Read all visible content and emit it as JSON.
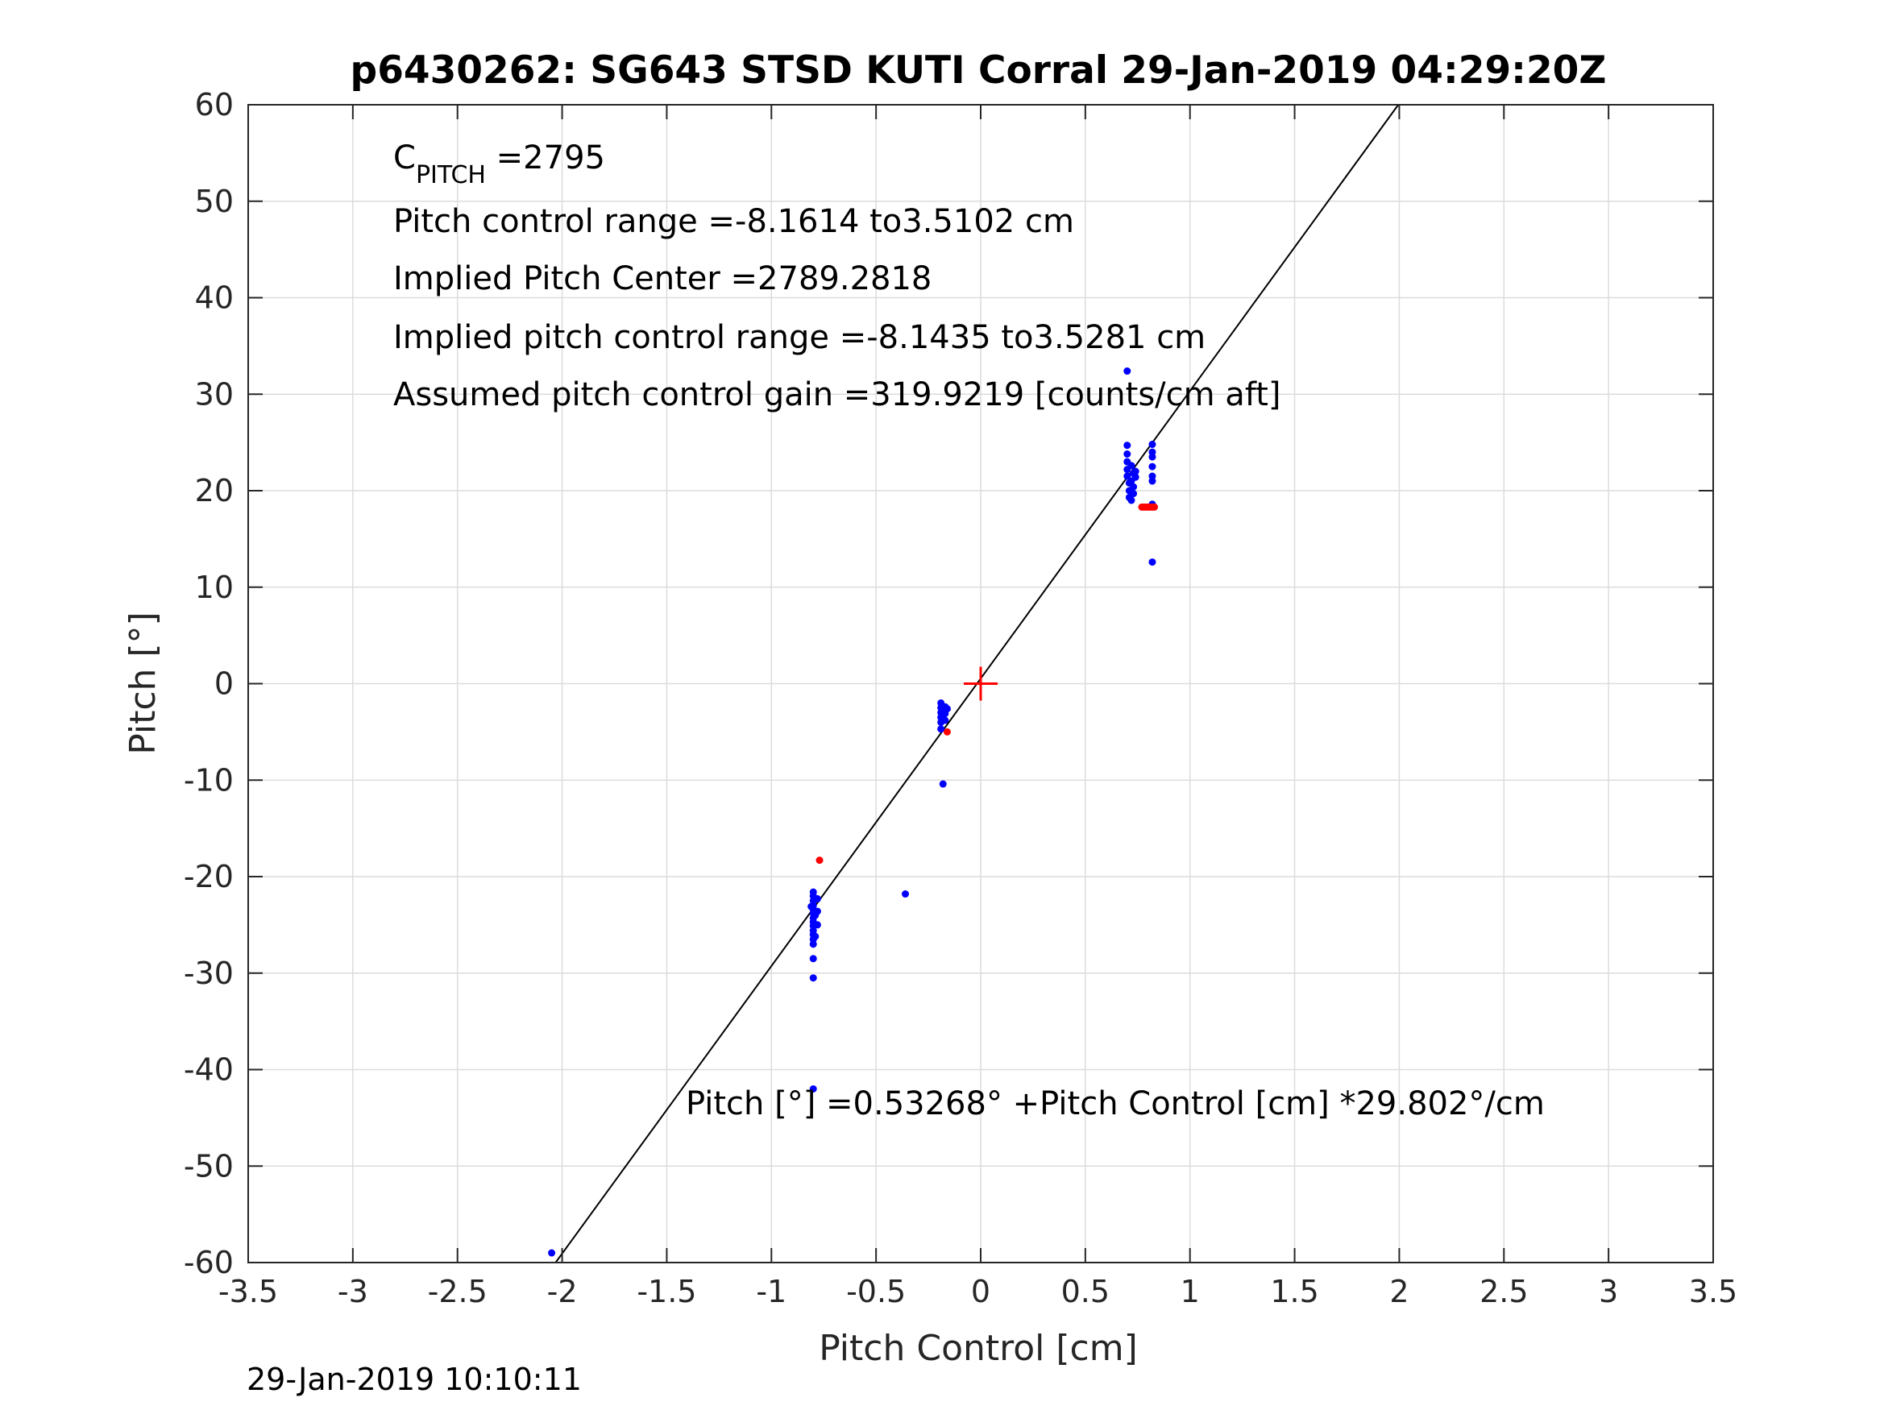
{
  "chart_data": {
    "type": "scatter",
    "title": "p6430262: SG643 STSD KUTI Corral 29-Jan-2019 04:29:20Z",
    "xlabel": "Pitch Control [cm]",
    "ylabel": "Pitch [°]",
    "xlim": [
      -3.5,
      3.5
    ],
    "ylim": [
      -60,
      60
    ],
    "grid": true,
    "xticks": [
      -3.5,
      -3,
      -2.5,
      -2,
      -1.5,
      -1,
      -0.5,
      0,
      0.5,
      1,
      1.5,
      2,
      2.5,
      3,
      3.5
    ],
    "xtick_labels": [
      "-3.5",
      "-3",
      "-2.5",
      "-2",
      "-1.5",
      "-1",
      "-0.5",
      "0",
      "0.5",
      "1",
      "1.5",
      "2",
      "2.5",
      "3",
      "3.5"
    ],
    "yticks": [
      -60,
      -50,
      -40,
      -30,
      -20,
      -10,
      0,
      10,
      20,
      30,
      40,
      50,
      60
    ],
    "ytick_labels": [
      "-60",
      "-50",
      "-40",
      "-30",
      "-20",
      "-10",
      "0",
      "10",
      "20",
      "30",
      "40",
      "50",
      "60"
    ],
    "colors": {
      "blue": "#0000ff",
      "red": "#ff0000",
      "line": "#000000",
      "grid": "#dcdcdc",
      "axis": "#262626"
    },
    "fit_line": {
      "intercept": 0.53268,
      "slope": 29.802
    },
    "center_marker": {
      "x": 0,
      "y": 0
    },
    "series": [
      {
        "color": "#0000ff",
        "points": [
          [
            -2.05,
            -59.0
          ],
          [
            -0.8,
            -21.6
          ],
          [
            -0.8,
            -22.0
          ],
          [
            -0.8,
            -22.5
          ],
          [
            -0.8,
            -23.0
          ],
          [
            -0.8,
            -23.4
          ],
          [
            -0.8,
            -23.8
          ],
          [
            -0.8,
            -24.3
          ],
          [
            -0.8,
            -24.7
          ],
          [
            -0.8,
            -25.1
          ],
          [
            -0.8,
            -25.6
          ],
          [
            -0.8,
            -26.0
          ],
          [
            -0.8,
            -26.5
          ],
          [
            -0.8,
            -27.0
          ],
          [
            -0.8,
            -28.5
          ],
          [
            -0.8,
            -30.5
          ],
          [
            -0.8,
            -42.0
          ],
          [
            -0.78,
            -22.3
          ],
          [
            -0.78,
            -23.6
          ],
          [
            -0.78,
            -25.0
          ],
          [
            -0.79,
            -26.2
          ],
          [
            -0.79,
            -24.0
          ],
          [
            -0.81,
            -23.1
          ],
          [
            -0.36,
            -21.8
          ],
          [
            -0.19,
            -2.0
          ],
          [
            -0.19,
            -2.5
          ],
          [
            -0.19,
            -3.0
          ],
          [
            -0.19,
            -3.5
          ],
          [
            -0.19,
            -4.0
          ],
          [
            -0.18,
            -2.7
          ],
          [
            -0.18,
            -3.3
          ],
          [
            -0.17,
            -2.4
          ],
          [
            -0.17,
            -3.1
          ],
          [
            -0.17,
            -3.8
          ],
          [
            -0.16,
            -2.6
          ],
          [
            -0.19,
            -4.7
          ],
          [
            -0.18,
            -10.4
          ],
          [
            0.7,
            24.7
          ],
          [
            0.7,
            23.8
          ],
          [
            0.7,
            23.0
          ],
          [
            0.7,
            22.2
          ],
          [
            0.7,
            21.5
          ],
          [
            0.71,
            20.8
          ],
          [
            0.71,
            20.0
          ],
          [
            0.71,
            19.3
          ],
          [
            0.72,
            19.0
          ],
          [
            0.72,
            21.0
          ],
          [
            0.72,
            22.6
          ],
          [
            0.73,
            21.8
          ],
          [
            0.73,
            20.4
          ],
          [
            0.73,
            19.7
          ],
          [
            0.74,
            22.0
          ],
          [
            0.74,
            21.4
          ],
          [
            0.7,
            32.4
          ],
          [
            0.82,
            24.8
          ],
          [
            0.82,
            24.0
          ],
          [
            0.82,
            23.5
          ],
          [
            0.82,
            22.5
          ],
          [
            0.82,
            21.5
          ],
          [
            0.82,
            21.0
          ],
          [
            0.82,
            18.6
          ],
          [
            0.82,
            12.6
          ]
        ]
      },
      {
        "color": "#ff0000",
        "points": [
          [
            -0.77,
            -18.3
          ],
          [
            -0.16,
            -5.0
          ],
          [
            0.77,
            18.3
          ],
          [
            0.78,
            18.3
          ],
          [
            0.79,
            18.3
          ],
          [
            0.8,
            18.3
          ],
          [
            0.81,
            18.3
          ],
          [
            0.82,
            18.3
          ],
          [
            0.83,
            18.3
          ]
        ]
      }
    ]
  },
  "annotations": {
    "cpitch_main": "C",
    "cpitch_sub": "PITCH",
    "cpitch_value": " =2795",
    "control_range": "Pitch control range =-8.1614 to3.5102 cm",
    "implied_center": "Implied Pitch Center =2789.2818",
    "implied_range": "Implied pitch control range =-8.1435 to3.5281 cm",
    "assumed_gain": "Assumed pitch control gain =319.9219 [counts/cm aft]",
    "fit_equation": "Pitch [°] =0.53268° +Pitch Control [cm] *29.802°/cm"
  },
  "timestamp": "29-Jan-2019 10:10:11"
}
